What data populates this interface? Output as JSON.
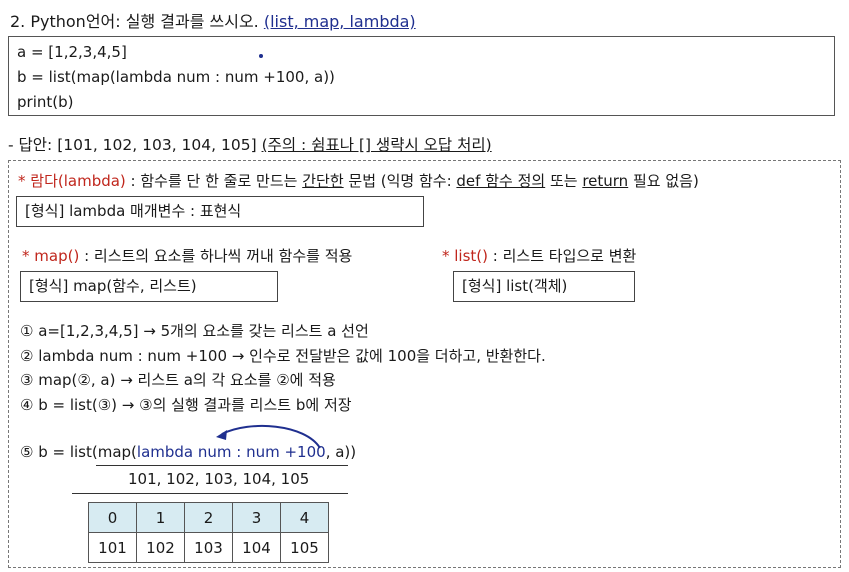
{
  "question": {
    "title": "2. Python언어: 실행 결과를 쓰시오.",
    "hint": "(list, map, lambda)"
  },
  "code": {
    "lines": [
      "a = [1,2,3,4,5]",
      "b = list(map(lambda  num : num +100, a))",
      "print(b)"
    ]
  },
  "answer": {
    "label": "- 답안: [101, 102, 103, 104, 105]",
    "note": "(주의 : 쉼표나 [] 생략시 오답 처리)"
  },
  "explanation": {
    "lambda": {
      "name": "* 람다(lambda)",
      "desc_1": " : 함수를 단 한 줄로 만드는 ",
      "desc_u1": "간단한",
      "desc_2": " 문법 (익명 함수: ",
      "desc_u2": "def 함수 정의",
      "desc_3": " 또는 ",
      "desc_u3": "return",
      "desc_4": " 필요 없음)",
      "form": "[형식] lambda 매개변수 : 표현식"
    },
    "map": {
      "name": "* map()",
      "desc": " : 리스트의 요소를 하나씩 꺼내 함수를 적용",
      "form": "[형식] map(함수, 리스트)"
    },
    "list": {
      "name": "* list()",
      "desc": " : 리스트 타입으로 변환",
      "form": "[형식] list(객체)"
    },
    "steps": [
      "① a=[1,2,3,4,5] → 5개의 요소를 갖는 리스트 a 선언",
      "② lambda  num : num +100 → 인수로 전달받은 값에 100을 더하고, 반환한다.",
      "③ map(②, a) → 리스트 a의 각 요소를 ②에 적용",
      "④ b = list(③) → ③의 실행 결과를 리스트 b에 저장"
    ],
    "step5": {
      "prefix": "⑤ b = list(map(",
      "lambda_part": "lambda  num : num +100",
      "suffix": ", a))",
      "result": "101, 102, 103, 104, 105"
    },
    "table": {
      "indices": [
        "0",
        "1",
        "2",
        "3",
        "4"
      ],
      "values": [
        "101",
        "102",
        "103",
        "104",
        "105"
      ]
    }
  }
}
